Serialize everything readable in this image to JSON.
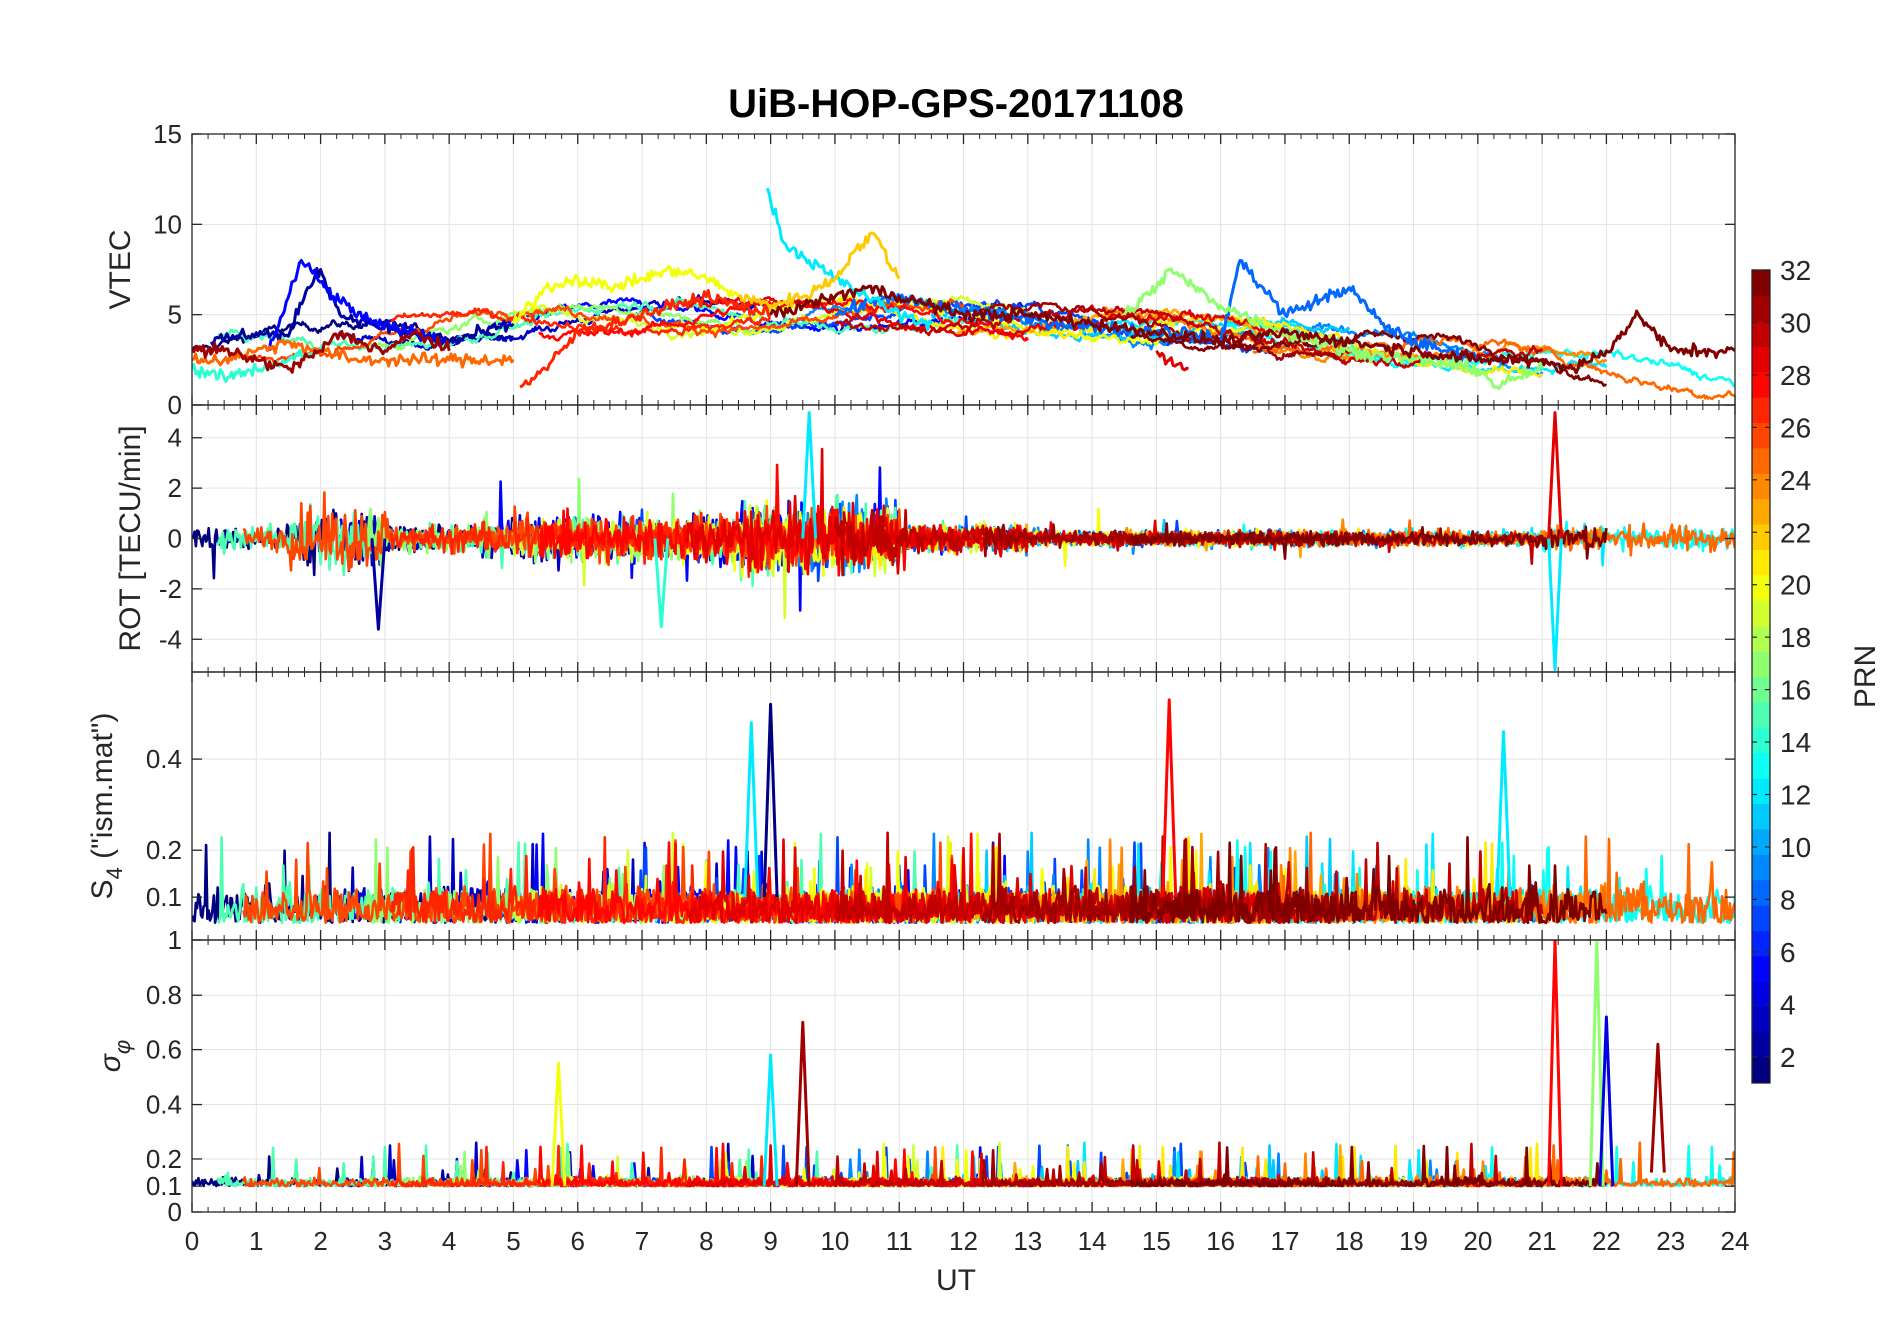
{
  "chart_data": {
    "type": "line",
    "title": "UiB-HOP-GPS-20171108",
    "xlabel": "UT",
    "x_ticks": [
      "0",
      "1",
      "2",
      "3",
      "4",
      "5",
      "6",
      "7",
      "8",
      "9",
      "10",
      "11",
      "12",
      "13",
      "14",
      "15",
      "16",
      "17",
      "18",
      "19",
      "20",
      "21",
      "22",
      "23",
      "24"
    ],
    "xlim": [
      0,
      24
    ],
    "grid": true,
    "colormap": "jet",
    "colorbar": {
      "label": "PRN",
      "range": [
        1,
        32
      ],
      "ticks": [
        "2",
        "4",
        "6",
        "8",
        "10",
        "12",
        "14",
        "16",
        "18",
        "20",
        "22",
        "24",
        "26",
        "28",
        "30",
        "32"
      ]
    },
    "panels": [
      {
        "ylabel": "VTEC",
        "ylim": [
          0,
          15
        ],
        "y_ticks": [
          "0",
          "5",
          "10",
          "15"
        ],
        "series_estimated": [
          {
            "prn": 2,
            "x": [
              0.3,
              1,
              1.5,
              1.8,
              2,
              2.3,
              2.8,
              3.3,
              4,
              4.5,
              5
            ],
            "y": [
              3.5,
              4,
              3.8,
              6.5,
              7.5,
              5,
              4.5,
              4,
              3.5,
              4,
              4.5
            ]
          },
          {
            "prn": 5,
            "x": [
              1.2,
              1.7,
              2.2,
              2.8,
              3.5,
              4
            ],
            "y": [
              3,
              8,
              6,
              4.5,
              4,
              3.5
            ]
          },
          {
            "prn": 8,
            "x": [
              10,
              10.8,
              11.5,
              12.5,
              13.5,
              14.5,
              15.5,
              16,
              16.3,
              17,
              18,
              18.5,
              19,
              19.5,
              20
            ],
            "y": [
              5,
              6,
              5.5,
              5,
              4.5,
              4.2,
              4,
              3.5,
              8,
              5,
              6.5,
              4.5,
              3.5,
              3,
              2.5
            ]
          },
          {
            "prn": 12,
            "x": [
              8.95,
              9.2,
              9.6,
              10,
              10.5,
              11,
              11.5
            ],
            "y": [
              12,
              9,
              8,
              7,
              6,
              5,
              4.5
            ]
          },
          {
            "prn": 14,
            "x": [
              0,
              0.5,
              1,
              1.5,
              2
            ],
            "y": [
              2,
              1.5,
              2,
              2.5,
              3
            ]
          },
          {
            "prn": 17,
            "x": [
              14.5,
              15,
              15.2,
              16,
              17,
              18,
              19,
              20,
              20.3,
              20.6,
              21
            ],
            "y": [
              5,
              6.5,
              7.5,
              5.5,
              4,
              3,
              2.5,
              2,
              1,
              1.5,
              2
            ]
          },
          {
            "prn": 20,
            "x": [
              5,
              5.5,
              6,
              6.5,
              7,
              7.5,
              8,
              8.5
            ],
            "y": [
              4.5,
              6.5,
              7,
              6.5,
              7,
              7.5,
              7,
              6
            ]
          },
          {
            "prn": 22,
            "x": [
              8.5,
              9,
              9.5,
              10,
              10.3,
              10.6,
              11
            ],
            "y": [
              6,
              5.5,
              6,
              7,
              8.5,
              9.5,
              7
            ]
          },
          {
            "prn": 25,
            "x": [
              0,
              0.5,
              1,
              1.5,
              2,
              2.5,
              3,
              3.5,
              4,
              4.5,
              5
            ],
            "y": [
              2.5,
              2.5,
              3,
              3.5,
              3,
              2.5,
              2.5,
              2.5,
              2.5,
              2.5,
              2.5
            ]
          },
          {
            "prn": 27,
            "x": [
              5.1,
              5.5,
              6,
              6.5,
              7,
              7.5,
              8,
              8.5,
              9
            ],
            "y": [
              1,
              2,
              4,
              4.5,
              5,
              5.5,
              6,
              5.5,
              5
            ]
          },
          {
            "prn": 29,
            "x": [
              15,
              15.2,
              15.5
            ],
            "y": [
              3,
              2.5,
              2
            ]
          },
          {
            "prn": 31,
            "x": [
              0,
              0.5,
              1,
              1.5,
              2,
              2.3,
              2.6,
              3,
              3.5,
              4
            ],
            "y": [
              3,
              3,
              2.5,
              2,
              3,
              4,
              3.5,
              3,
              4,
              3
            ]
          },
          {
            "prn": 32,
            "x": [
              9,
              9.5,
              10,
              10.5,
              11,
              11.5,
              12,
              13,
              14,
              15,
              16,
              17,
              18,
              19,
              20,
              21,
              21.5,
              22,
              22.5,
              23,
              23.5,
              24
            ],
            "y": [
              5,
              5.5,
              6,
              6.5,
              6,
              5.5,
              5,
              5,
              4.5,
              4,
              3.5,
              4,
              3.5,
              3,
              2.5,
              2.5,
              2,
              3,
              5,
              3,
              3,
              3
            ]
          }
        ]
      },
      {
        "ylabel": "ROT [TECU/min]",
        "ylim": [
          -5.3,
          5.3
        ],
        "y_ticks": [
          "-4",
          "-2",
          "0",
          "2",
          "4"
        ],
        "notes": "dense noisy series centred on 0, amplitude ~1-2 TECU/min, peaks near 2, 9-10 and 21.2 UT",
        "series_estimated": [
          {
            "prn": 12,
            "x": [
              9.5,
              9.6,
              9.7
            ],
            "y": [
              0,
              5,
              0
            ]
          },
          {
            "prn": 29,
            "x": [
              21.1,
              21.2,
              21.3
            ],
            "y": [
              0,
              5,
              0
            ]
          },
          {
            "prn": 12,
            "x": [
              21.1,
              21.2,
              21.3
            ],
            "y": [
              0,
              -5.2,
              0
            ]
          },
          {
            "prn": 2,
            "x": [
              2.8,
              2.9,
              3
            ],
            "y": [
              0,
              -3.6,
              0
            ]
          },
          {
            "prn": 14,
            "x": [
              7.2,
              7.3,
              7.4
            ],
            "y": [
              0,
              -3.5,
              0
            ]
          }
        ]
      },
      {
        "ylabel": "S4 (\"ism.mat\")",
        "ylim": [
          0.05,
          0.55
        ],
        "y_ticks": [
          "0.1",
          "0.2",
          "0.4"
        ],
        "notes": "scintillation index, baseline ~0.06-0.1 with bursts up to ~0.4-0.5",
        "series_estimated": [
          {
            "prn": 1,
            "x": [
              8.9,
              9,
              9.1
            ],
            "y": [
              0.1,
              0.52,
              0.1
            ]
          },
          {
            "prn": 28,
            "x": [
              15.1,
              15.2,
              15.3
            ],
            "y": [
              0.1,
              0.53,
              0.1
            ]
          },
          {
            "prn": 12,
            "x": [
              8.6,
              8.7,
              8.8
            ],
            "y": [
              0.1,
              0.48,
              0.1
            ]
          },
          {
            "prn": 12,
            "x": [
              20.3,
              20.4,
              20.5
            ],
            "y": [
              0.1,
              0.46,
              0.1
            ]
          }
        ]
      },
      {
        "ylabel": "σφ",
        "ylim": [
          0,
          1
        ],
        "y_ticks": [
          "0",
          "0.1",
          "0.2",
          "0.4",
          "0.6",
          "0.8",
          "1"
        ],
        "notes": "phase scintillation, baseline ~0.1 with bursts",
        "series_estimated": [
          {
            "prn": 28,
            "x": [
              21.1,
              21.2,
              21.3
            ],
            "y": [
              0.1,
              1.0,
              0.1
            ]
          },
          {
            "prn": 17,
            "x": [
              21.75,
              21.85,
              21.95
            ],
            "y": [
              0.1,
              1.0,
              0.1
            ]
          },
          {
            "prn": 4,
            "x": [
              21.9,
              22,
              22.1
            ],
            "y": [
              0.1,
              0.72,
              0.1
            ]
          },
          {
            "prn": 31,
            "x": [
              9.4,
              9.5,
              9.6
            ],
            "y": [
              0.1,
              0.7,
              0.1
            ]
          },
          {
            "prn": 31,
            "x": [
              22.7,
              22.8,
              22.9
            ],
            "y": [
              0.15,
              0.62,
              0.15
            ]
          },
          {
            "prn": 20,
            "x": [
              5.6,
              5.7,
              5.8
            ],
            "y": [
              0.1,
              0.55,
              0.1
            ]
          },
          {
            "prn": 12,
            "x": [
              8.9,
              9,
              9.1
            ],
            "y": [
              0.1,
              0.58,
              0.1
            ]
          }
        ]
      }
    ]
  }
}
